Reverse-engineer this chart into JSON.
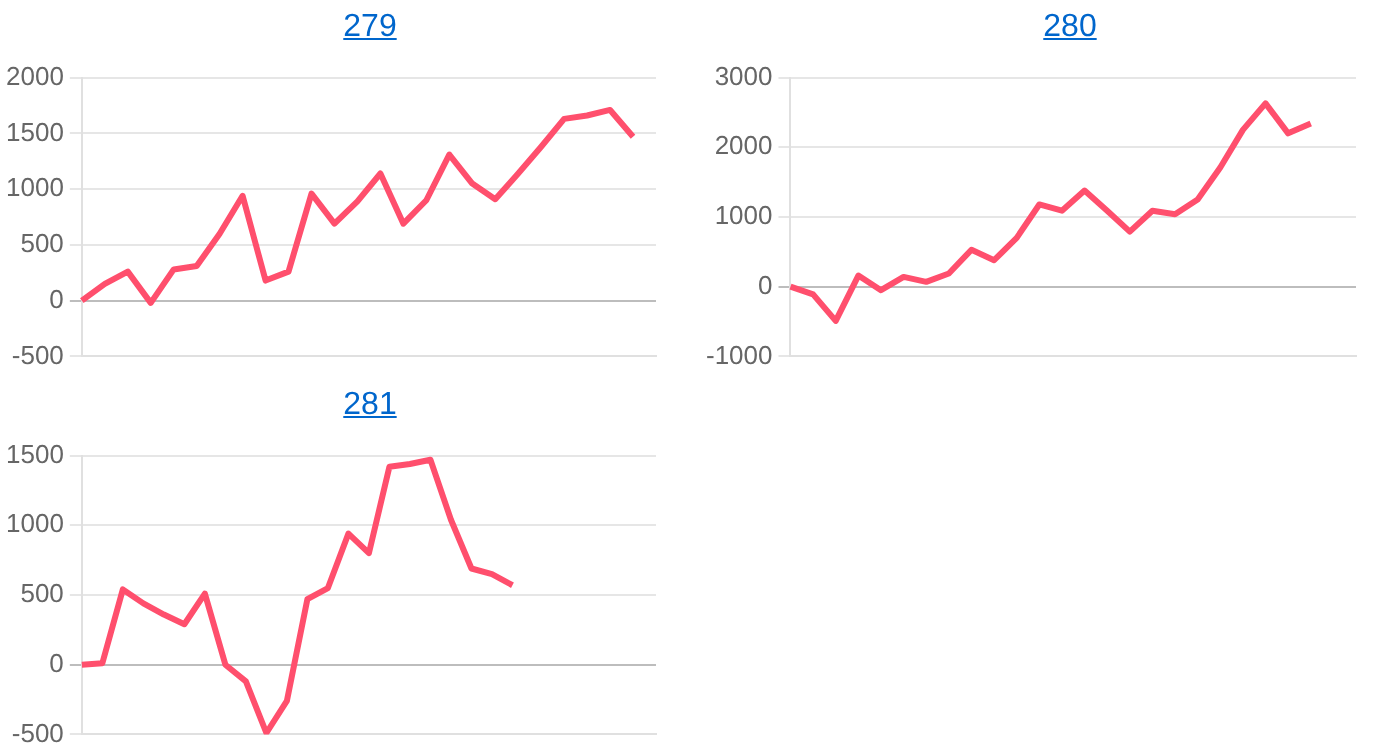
{
  "chart_data": [
    {
      "type": "line",
      "title": "279",
      "categories": [
        null,
        null,
        null,
        null,
        null,
        null,
        null,
        null,
        null,
        null,
        null,
        null,
        null,
        null,
        null,
        null,
        null,
        null,
        null,
        null,
        null,
        null,
        null,
        null,
        null,
        null
      ],
      "series": [
        {
          "color": "#ff4f6d",
          "values": [
            0,
            150,
            260,
            -20,
            280,
            310,
            600,
            940,
            180,
            260,
            960,
            690,
            890,
            1140,
            690,
            900,
            1310,
            1050,
            910,
            1140,
            1380,
            1630,
            1660,
            1710,
            1470,
            null
          ]
        }
      ],
      "ylim": [
        -500,
        2000
      ],
      "yticks": [
        -500,
        0,
        500,
        1000,
        1500,
        2000
      ],
      "grid": "y",
      "tick_labels": "y",
      "marker": "none",
      "line_style": "solid",
      "legend": false
    },
    {
      "type": "line",
      "title": "280",
      "categories": [
        null,
        null,
        null,
        null,
        null,
        null,
        null,
        null,
        null,
        null,
        null,
        null,
        null,
        null,
        null,
        null,
        null,
        null,
        null,
        null,
        null,
        null,
        null,
        null,
        null,
        null
      ],
      "series": [
        {
          "color": "#ff4f6d",
          "values": [
            0,
            -110,
            -490,
            160,
            -50,
            140,
            70,
            190,
            530,
            380,
            700,
            1180,
            1090,
            1380,
            1090,
            790,
            1090,
            1040,
            1250,
            1710,
            2250,
            2630,
            2200,
            2340,
            null,
            null
          ]
        }
      ],
      "ylim": [
        -1000,
        3000
      ],
      "yticks": [
        -1000,
        0,
        1000,
        2000,
        3000
      ],
      "grid": "y",
      "tick_labels": "y",
      "marker": "none",
      "line_style": "solid",
      "legend": false
    },
    {
      "type": "line",
      "title": "281",
      "categories": [
        null,
        null,
        null,
        null,
        null,
        null,
        null,
        null,
        null,
        null,
        null,
        null,
        null,
        null,
        null,
        null,
        null,
        null,
        null,
        null,
        null,
        null,
        null,
        null,
        null,
        null,
        null,
        null,
        null
      ],
      "series": [
        {
          "color": "#ff4f6d",
          "values": [
            0,
            10,
            540,
            440,
            360,
            290,
            510,
            0,
            -120,
            -490,
            -260,
            470,
            550,
            940,
            800,
            1420,
            1440,
            1470,
            1040,
            690,
            650,
            570,
            null,
            null,
            null,
            null,
            null,
            null,
            null
          ]
        }
      ],
      "ylim": [
        -500,
        1500
      ],
      "yticks": [
        -500,
        0,
        500,
        1000,
        1500
      ],
      "grid": "y",
      "tick_labels": "y",
      "marker": "none",
      "line_style": "solid",
      "legend": false
    }
  ]
}
